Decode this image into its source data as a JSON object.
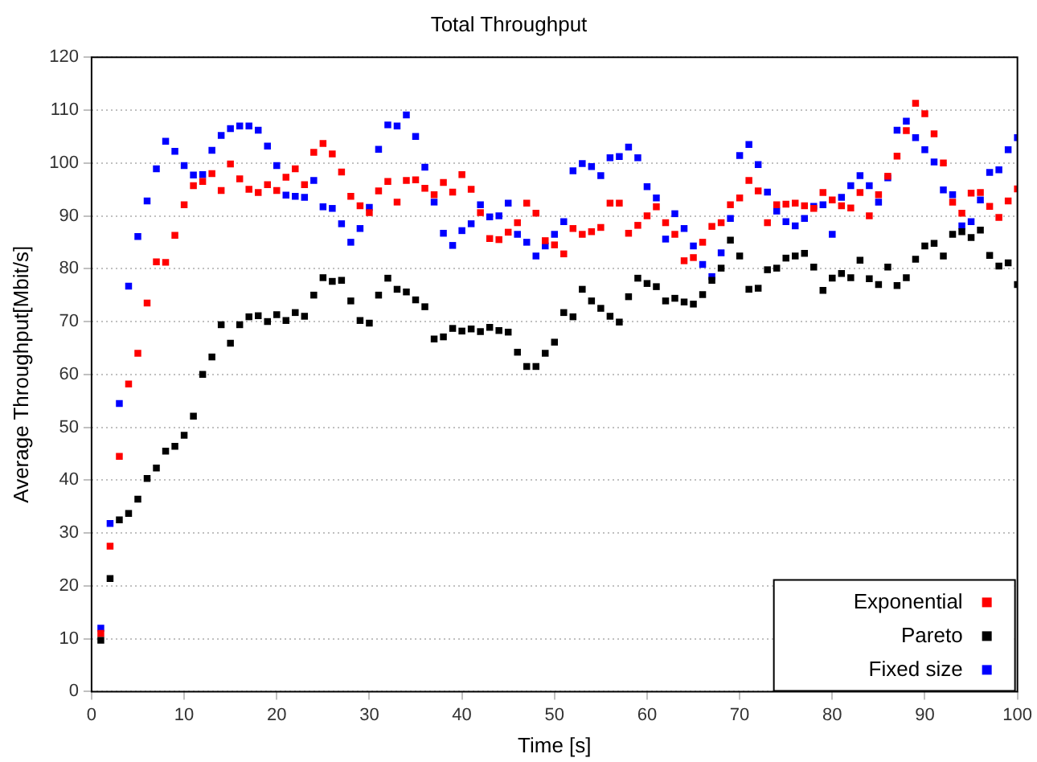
{
  "chart_data": {
    "type": "scatter",
    "title": "Total Throughput",
    "xlabel": "Time [s]",
    "ylabel": "Average Throughput[Mbit/s]",
    "x": [
      1,
      2,
      3,
      4,
      5,
      6,
      7,
      8,
      9,
      10,
      11,
      12,
      13,
      14,
      15,
      16,
      17,
      18,
      19,
      20,
      21,
      22,
      23,
      24,
      25,
      26,
      27,
      28,
      29,
      30,
      31,
      32,
      33,
      34,
      35,
      36,
      37,
      38,
      39,
      40,
      41,
      42,
      43,
      44,
      45,
      46,
      47,
      48,
      49,
      50,
      51,
      52,
      53,
      54,
      55,
      56,
      57,
      58,
      59,
      60,
      61,
      62,
      63,
      64,
      65,
      66,
      67,
      68,
      69,
      70,
      71,
      72,
      73,
      74,
      75,
      76,
      77,
      78,
      79,
      80,
      81,
      82,
      83,
      84,
      85,
      86,
      87,
      88,
      89,
      90,
      91,
      92,
      93,
      94,
      95,
      96,
      97,
      98,
      99,
      100
    ],
    "series": [
      {
        "name": "Exponential",
        "color": "#ff0000",
        "values": [
          11,
          27.5,
          44.5,
          58.2,
          64,
          73.5,
          81.3,
          81.2,
          86.3,
          92.1,
          95.7,
          96.5,
          98,
          94.8,
          99.8,
          97,
          95,
          94.4,
          95.9,
          94.8,
          97.3,
          98.9,
          95.9,
          102,
          103.7,
          101.7,
          98.3,
          93.7,
          91.9,
          90.6,
          94.7,
          96.5,
          92.6,
          96.7,
          96.8,
          95.2,
          94,
          96.3,
          94.5,
          97.8,
          95,
          90.6,
          85.7,
          85.5,
          86.9,
          88.7,
          92.4,
          90.5,
          85.3,
          84.5,
          82.8,
          87.6,
          86.5,
          87,
          87.8,
          92.4,
          92.4,
          86.7,
          88.2,
          90,
          91.7,
          88.7,
          86.5,
          81.5,
          82.1,
          85,
          88,
          88.7,
          92.1,
          93.4,
          96.7,
          94.7,
          88.7,
          92.1,
          92.2,
          92.4,
          91.9,
          91.4,
          94.4,
          93,
          91.9,
          91.5,
          94.4,
          90,
          94,
          97.5,
          101.3,
          106.1,
          111.3,
          109.3,
          105.5,
          100,
          92.6,
          90.5,
          94.3,
          94.4,
          91.8,
          89.7,
          92.8,
          95.1
        ]
      },
      {
        "name": "Pareto",
        "color": "#000000",
        "values": [
          9.7,
          21.4,
          32.5,
          33.7,
          36.4,
          40.3,
          42.3,
          45.5,
          46.4,
          48.5,
          52.1,
          60,
          63.3,
          69.4,
          65.9,
          69.4,
          70.9,
          71.1,
          70,
          71.3,
          70.2,
          71.7,
          71,
          75,
          78.3,
          77.6,
          77.8,
          73.9,
          70.2,
          69.7,
          75,
          78.2,
          76.1,
          75.6,
          74.1,
          72.8,
          66.7,
          67.1,
          68.7,
          68.2,
          68.6,
          68.1,
          68.9,
          68.3,
          68,
          64.2,
          61.5,
          61.5,
          64,
          66.1,
          71.7,
          70.9,
          76.1,
          73.9,
          72.5,
          71,
          69.9,
          74.7,
          78.2,
          77.2,
          76.6,
          73.9,
          74.4,
          73.7,
          73.3,
          75.1,
          77.8,
          80.1,
          85.4,
          82.4,
          76.1,
          76.3,
          79.8,
          80.1,
          82,
          82.4,
          82.9,
          80.3,
          75.9,
          78.2,
          79.1,
          78.3,
          81.6,
          78.1,
          77,
          80.3,
          76.8,
          78.3,
          81.8,
          84.3,
          84.8,
          82.4,
          86.5,
          87,
          85.9,
          87.3,
          82.5,
          80.5,
          81.1,
          77
        ]
      },
      {
        "name": "Fixed size",
        "color": "#0000ff",
        "values": [
          12,
          31.8,
          54.5,
          76.7,
          86.1,
          92.8,
          98.9,
          104.1,
          102.2,
          99.5,
          97.7,
          97.8,
          102.4,
          105.2,
          106.5,
          107,
          107,
          106.2,
          103.2,
          99.5,
          93.9,
          93.7,
          93.5,
          96.7,
          91.7,
          91.4,
          88.5,
          85,
          87.6,
          91.6,
          102.6,
          107.2,
          107,
          109.1,
          105,
          99.2,
          92.6,
          86.7,
          84.4,
          87.2,
          88.5,
          92.1,
          89.8,
          90,
          92.4,
          86.5,
          85,
          82.4,
          84.3,
          86.5,
          88.9,
          98.5,
          99.9,
          99.3,
          97.6,
          101,
          101.2,
          103,
          101,
          95.5,
          93.4,
          85.6,
          90.4,
          87.6,
          84.3,
          80.8,
          78.5,
          83,
          89.5,
          101.4,
          103.5,
          99.7,
          94.5,
          90.9,
          88.9,
          88.1,
          89.5,
          91.8,
          92.1,
          86.5,
          93.5,
          95.7,
          97.6,
          95.7,
          92.6,
          97.2,
          106.2,
          107.9,
          104.8,
          102.5,
          100.2,
          94.9,
          94,
          88.1,
          88.9,
          93,
          98.2,
          98.7,
          102.5,
          104.8
        ]
      }
    ],
    "xlim": [
      0,
      100
    ],
    "xticks": [
      0,
      10,
      20,
      30,
      40,
      50,
      60,
      70,
      80,
      90,
      100
    ],
    "ylim": [
      0,
      120
    ],
    "yticks": [
      0,
      10,
      20,
      30,
      40,
      50,
      60,
      70,
      80,
      90,
      100,
      110,
      120
    ],
    "grid": "y",
    "legend": "bottom right",
    "marker": "square"
  }
}
